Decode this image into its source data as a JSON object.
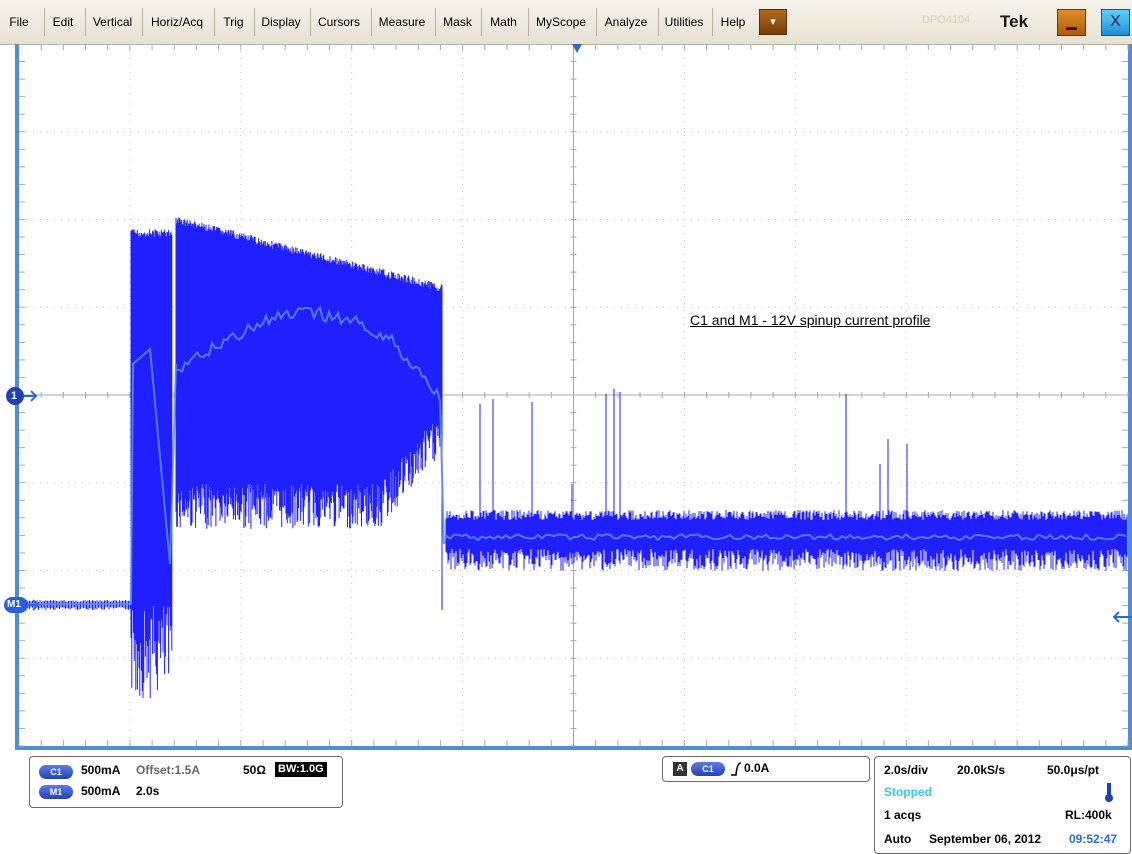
{
  "menu": {
    "items": [
      "File",
      "Edit",
      "Vertical",
      "Horiz/Acq",
      "Trig",
      "Display",
      "Cursors",
      "Measure",
      "Mask",
      "Math",
      "MyScope",
      "Analyze",
      "Utilities",
      "Help"
    ],
    "dropdown_glyph": "▾",
    "logo": "Tek",
    "watermark": "DPO4104",
    "close_glyph": "X"
  },
  "markers": {
    "ch1_label": "1",
    "m1_label": "M1"
  },
  "annotation": "C1 and M1 - 12V spinup current profile",
  "ch_panel": {
    "c1_pill": "C1",
    "c1_scale": "500mA",
    "c1_offset": "Offset:1.5A",
    "c1_impedance": "50Ω",
    "c1_bw": "BW:1.0G",
    "m1_pill": "M1",
    "m1_scale": "500mA",
    "m1_time": "2.0s"
  },
  "trigger_panel": {
    "mode_badge": "A",
    "source_pill": "C1",
    "slope_glyph": "⎍",
    "level": "0.0A"
  },
  "acq_panel": {
    "time_div": "2.0s/div",
    "sample_rate": "20.0kS/s",
    "resolution": "50.0μs/pt",
    "status": "Stopped",
    "acqs": "1 acqs",
    "record_length": "RL:400k",
    "trigger_mode": "Auto",
    "date": "September 06, 2012",
    "time": "09:52:47"
  },
  "colors": {
    "accent": "#4d8fd6",
    "waveform": "#1f1fff",
    "waveform_light": "#5b8ee8",
    "stopped": "#37c4f0"
  }
}
